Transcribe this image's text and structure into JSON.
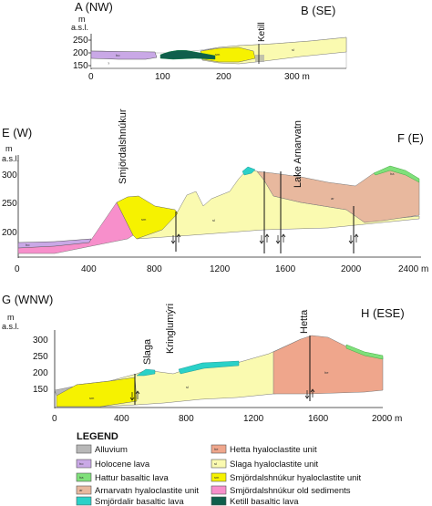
{
  "sections": [
    {
      "id": "ab",
      "left_label": "A (NW)",
      "right_label": "B (SE)",
      "y_unit": "m",
      "y_unit2": "a.s.l.",
      "y_ticks": [
        "250",
        "200",
        "150"
      ],
      "x_ticks": [
        "0",
        "100",
        "200",
        "300 m"
      ],
      "features": [
        "Ketill"
      ],
      "unit_codes": [
        "ho",
        "sm",
        "sl",
        "?"
      ]
    },
    {
      "id": "ef",
      "left_label": "E (W)",
      "right_label": "F (E)",
      "y_unit": "m",
      "y_unit2": "a.s.l.",
      "y_ticks": [
        "300",
        "250",
        "200"
      ],
      "x_ticks": [
        "0",
        "400",
        "800",
        "1200",
        "1600",
        "2000",
        "2400 m"
      ],
      "features": [
        "Smjördalshnúkur",
        "Lake Arnarvatn"
      ],
      "unit_codes": [
        "ho",
        "sm",
        "sl",
        "ar",
        "ha"
      ]
    },
    {
      "id": "gh",
      "left_label": "G (WNW)",
      "right_label": "H (ESE)",
      "y_unit": "m",
      "y_unit2": "a.s.l.",
      "y_ticks": [
        "300",
        "250",
        "200",
        "150"
      ],
      "x_ticks": [
        "0",
        "400",
        "800",
        "1200",
        "1600",
        "2000 m"
      ],
      "features": [
        "Slaga",
        "Kringlumýri",
        "Hetta"
      ],
      "unit_codes": [
        "sm",
        "sl",
        "he"
      ]
    }
  ],
  "legend": {
    "title": "LEGEND",
    "items": [
      {
        "label": "Alluvium",
        "code": "",
        "color": "#b8b8b8"
      },
      {
        "label": "Holocene lava",
        "code": "ho",
        "color": "#c9a8e6"
      },
      {
        "label": "Hattur basaltic lava",
        "code": "ha",
        "color": "#7fe07a"
      },
      {
        "label": "Arnarvatn hyaloclastite unit",
        "code": "ar",
        "color": "#e8b89e"
      },
      {
        "label": "Smjördalir basaltic lava",
        "code": "",
        "color": "#2ad1c8"
      },
      {
        "label": "Hetta hyaloclastite unit",
        "code": "he",
        "color": "#efa68c"
      },
      {
        "label": "Slaga hyaloclastite unit",
        "code": "sl",
        "color": "#fafab0"
      },
      {
        "label": "Smjördalshnúkur hyaloclastite unit",
        "code": "sm",
        "color": "#f6f200"
      },
      {
        "label": "Smjördalshnúkur old sediments",
        "code": "",
        "color": "#f78fcb"
      },
      {
        "label": "Ketill basaltic lava",
        "code": "",
        "color": "#0f5f4c"
      }
    ]
  },
  "colors": {
    "alluvium": "#b8b8b8",
    "holocene": "#c9a8e6",
    "hattur": "#7fe07a",
    "arnarvatn": "#e8b89e",
    "smjordalir": "#2ad1c8",
    "hetta": "#efa68c",
    "slaga": "#fafab0",
    "smjordalshnukur": "#f6f200",
    "old_sediments": "#f78fcb",
    "ketill": "#0f5f4c"
  }
}
